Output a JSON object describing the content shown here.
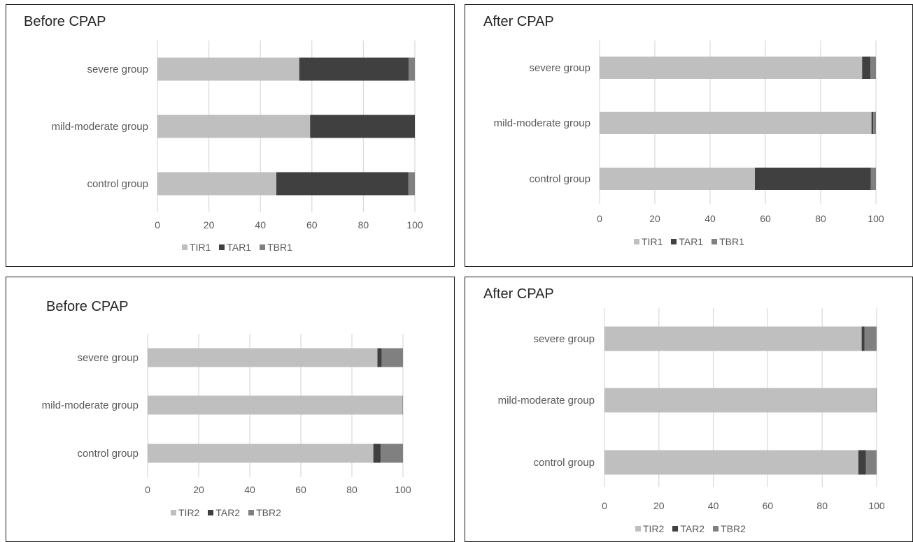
{
  "colors": {
    "TIR": "#bfbfbf",
    "TAR": "#404040",
    "TBR": "#808080",
    "grid": "#d9d9d9"
  },
  "chart_data": [
    {
      "type": "bar",
      "orientation": "horizontal",
      "stacked": true,
      "title": "Before CPAP",
      "categories": [
        "severe group",
        "mild-moderate group",
        "control group"
      ],
      "series": [
        {
          "name": "TIR1",
          "values": [
            55.1,
            59.3,
            46.2
          ]
        },
        {
          "name": "TAR1",
          "values": [
            42.5,
            40.7,
            51.3
          ]
        },
        {
          "name": "TBR1",
          "values": [
            2.4,
            0.0,
            2.5
          ]
        }
      ],
      "xlim": [
        0,
        100
      ],
      "xticks": [
        0,
        20,
        40,
        60,
        80,
        100
      ],
      "grid": true,
      "legend": "bottom"
    },
    {
      "type": "bar",
      "orientation": "horizontal",
      "stacked": true,
      "title": "After CPAP",
      "categories": [
        "severe group",
        "mild-moderate group",
        "control group"
      ],
      "series": [
        {
          "name": "TIR1",
          "values": [
            95.0,
            98.4,
            56.2
          ]
        },
        {
          "name": "TAR1",
          "values": [
            3.0,
            0.6,
            41.9
          ]
        },
        {
          "name": "TBR1",
          "values": [
            2.0,
            1.0,
            1.9
          ]
        }
      ],
      "xlim": [
        0,
        100
      ],
      "xticks": [
        0,
        20,
        40,
        60,
        80,
        100
      ],
      "grid": true,
      "legend": "bottom"
    },
    {
      "type": "bar",
      "orientation": "horizontal",
      "stacked": true,
      "title": "Before CPAP",
      "categories": [
        "severe group",
        "mild-moderate group",
        "control group"
      ],
      "series": [
        {
          "name": "TIR2",
          "values": [
            90.0,
            99.8,
            88.4
          ]
        },
        {
          "name": "TAR2",
          "values": [
            1.7,
            0.0,
            2.9
          ]
        },
        {
          "name": "TBR2",
          "values": [
            8.3,
            0.2,
            8.7
          ]
        }
      ],
      "xlim": [
        0,
        100
      ],
      "xticks": [
        0,
        20,
        40,
        60,
        80,
        100
      ],
      "grid": true,
      "legend": "bottom"
    },
    {
      "type": "bar",
      "orientation": "horizontal",
      "stacked": true,
      "title": "After CPAP",
      "categories": [
        "severe group",
        "mild-moderate group",
        "control group"
      ],
      "series": [
        {
          "name": "TIR2",
          "values": [
            94.5,
            99.8,
            93.3
          ]
        },
        {
          "name": "TAR2",
          "values": [
            1.0,
            0.0,
            2.8
          ]
        },
        {
          "name": "TBR2",
          "values": [
            4.5,
            0.2,
            3.9
          ]
        }
      ],
      "xlim": [
        0,
        100
      ],
      "xticks": [
        0,
        20,
        40,
        60,
        80,
        100
      ],
      "grid": true,
      "legend": "bottom"
    }
  ]
}
